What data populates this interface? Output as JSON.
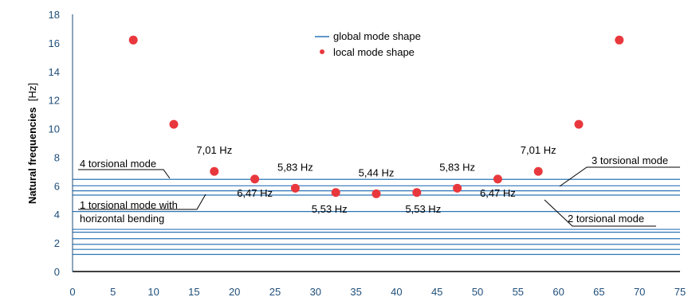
{
  "chart_data": {
    "type": "scatter",
    "ylabel_main": "Natural frequencies",
    "ylabel_unit": "[Hz]",
    "xlim": [
      0,
      75
    ],
    "ylim": [
      0,
      18
    ],
    "xticks": [
      "0",
      "5",
      "10",
      "15",
      "20",
      "25",
      "30",
      "35",
      "40",
      "45",
      "50",
      "55",
      "60",
      "65",
      "70",
      "75"
    ],
    "yticks": [
      "0",
      "2",
      "4",
      "6",
      "8",
      "10",
      "12",
      "14",
      "16",
      "18"
    ],
    "legend": {
      "position": "top-center",
      "global_label": "global mode shape",
      "local_label": "local mode shape"
    },
    "colors": {
      "global": "#2e75b6",
      "local": "#e8383d",
      "ticks": "#1f4e79"
    },
    "global_modes": [
      1.2,
      1.55,
      1.9,
      2.3,
      2.75,
      2.95,
      4.2,
      5.35,
      5.65,
      6.0,
      6.45
    ],
    "local_modes": {
      "x": [
        7.5,
        12.5,
        17.5,
        22.5,
        27.5,
        32.5,
        37.5,
        42.5,
        47.5,
        52.5,
        57.5,
        62.5,
        67.5
      ],
      "y": [
        16.2,
        10.3,
        7.01,
        6.47,
        5.83,
        5.53,
        5.44,
        5.53,
        5.83,
        6.47,
        7.01,
        10.3,
        16.2
      ]
    },
    "value_labels": [
      {
        "text": "7,01 Hz",
        "x": 17.5,
        "y": 7.01
      },
      {
        "text": "6,47 Hz",
        "x": 22.5,
        "y": 6.47
      },
      {
        "text": "5,83 Hz",
        "x": 27.5,
        "y": 5.83
      },
      {
        "text": "5,53 Hz",
        "x": 32.5,
        "y": 5.53
      },
      {
        "text": "5,44 Hz",
        "x": 37.5,
        "y": 5.44
      },
      {
        "text": "5,53 Hz",
        "x": 42.5,
        "y": 5.53
      },
      {
        "text": "5,83 Hz",
        "x": 47.5,
        "y": 5.83
      },
      {
        "text": "6,47 Hz",
        "x": 52.5,
        "y": 6.47
      },
      {
        "text": "7,01 Hz",
        "x": 57.5,
        "y": 7.01
      }
    ],
    "mode_annotations": {
      "torsional_4": "4 torsional mode",
      "torsional_1_line1": "1 torsional mode with",
      "torsional_1_line2": "horizontal bending",
      "torsional_3": "3 torsional mode",
      "torsional_2": "2 torsional mode"
    }
  }
}
